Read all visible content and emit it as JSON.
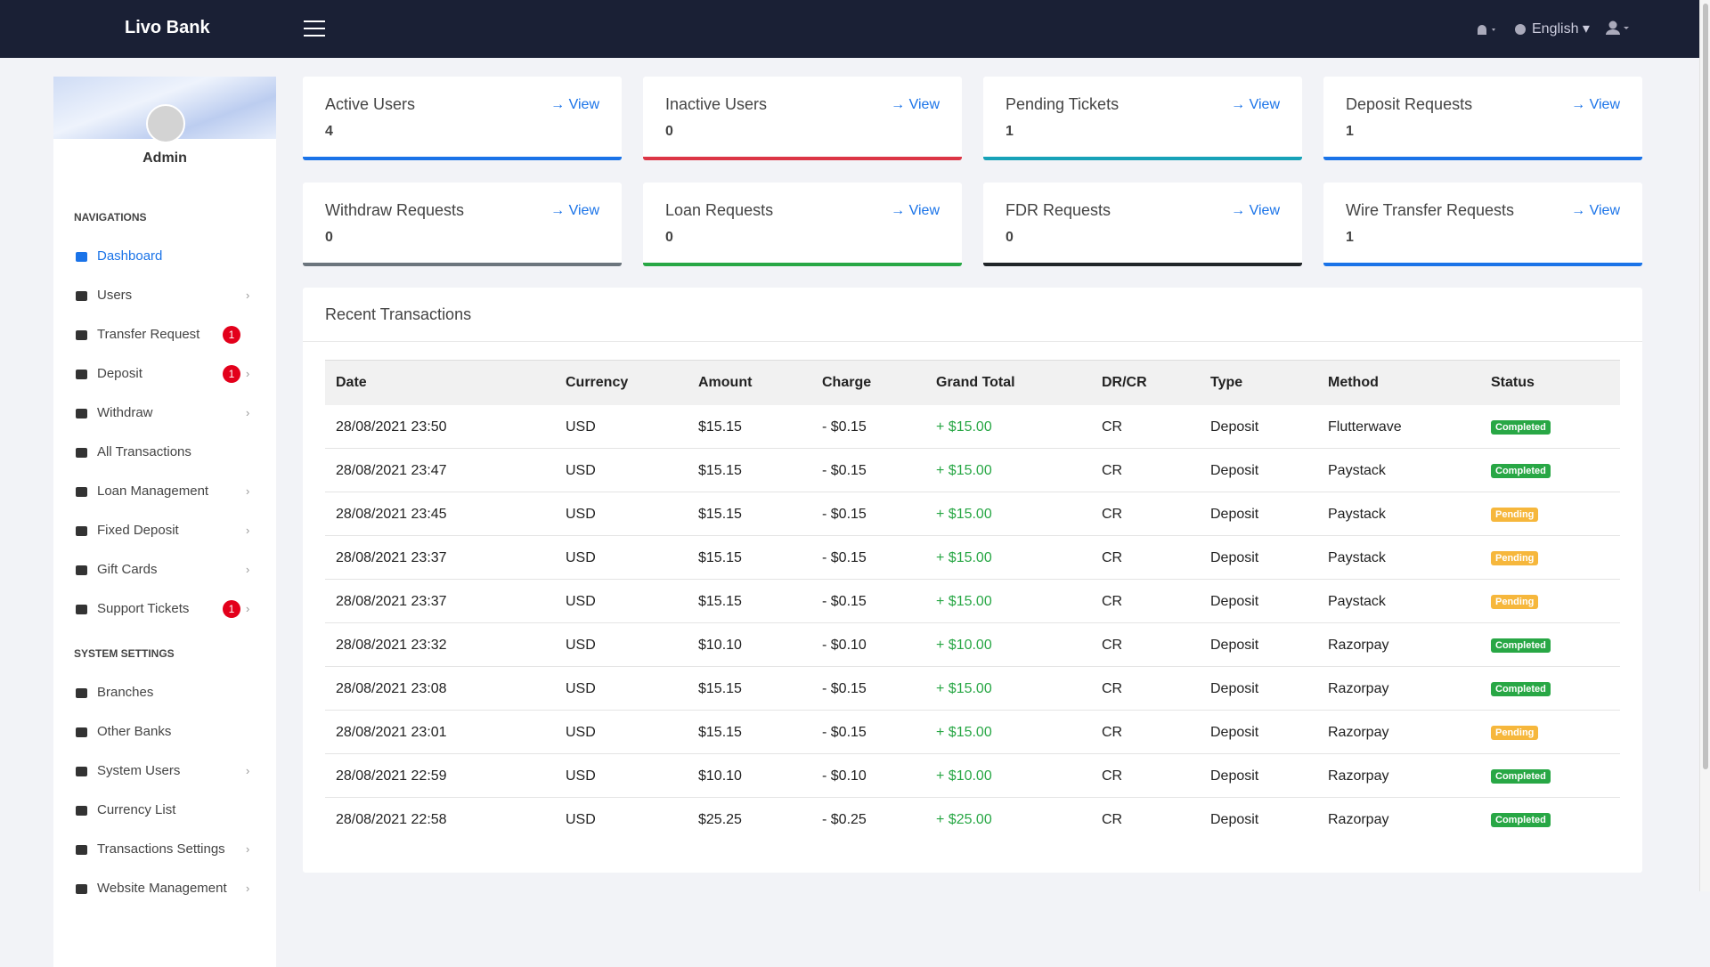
{
  "header": {
    "brand": "Livo Bank",
    "language": "English"
  },
  "sidebar": {
    "user": "Admin",
    "sections": [
      {
        "title": "NAVIGATIONS",
        "items": [
          {
            "label": "Dashboard",
            "active": true
          },
          {
            "label": "Users",
            "submenu": true
          },
          {
            "label": "Transfer Request",
            "badge": "1"
          },
          {
            "label": "Deposit",
            "badge": "1",
            "submenu": true
          },
          {
            "label": "Withdraw",
            "submenu": true
          },
          {
            "label": "All Transactions"
          },
          {
            "label": "Loan Management",
            "submenu": true
          },
          {
            "label": "Fixed Deposit",
            "submenu": true
          },
          {
            "label": "Gift Cards",
            "submenu": true
          },
          {
            "label": "Support Tickets",
            "badge": "1",
            "submenu": true
          }
        ]
      },
      {
        "title": "SYSTEM SETTINGS",
        "items": [
          {
            "label": "Branches"
          },
          {
            "label": "Other Banks"
          },
          {
            "label": "System Users",
            "submenu": true
          },
          {
            "label": "Currency List"
          },
          {
            "label": "Transactions Settings",
            "submenu": true
          },
          {
            "label": "Website Management",
            "submenu": true
          }
        ]
      }
    ]
  },
  "cards": [
    {
      "title": "Active Users",
      "count": "4",
      "link": "View",
      "color": "#1a73e8"
    },
    {
      "title": "Inactive Users",
      "count": "0",
      "link": "View",
      "color": "#dc3545"
    },
    {
      "title": "Pending Tickets",
      "count": "1",
      "link": "View",
      "color": "#17a2b8"
    },
    {
      "title": "Deposit Requests",
      "count": "1",
      "link": "View",
      "color": "#1a73e8"
    },
    {
      "title": "Withdraw Requests",
      "count": "0",
      "link": "View",
      "color": "#6c757d"
    },
    {
      "title": "Loan Requests",
      "count": "0",
      "link": "View",
      "color": "#28a745"
    },
    {
      "title": "FDR Requests",
      "count": "0",
      "link": "View",
      "color": "#212529"
    },
    {
      "title": "Wire Transfer Requests",
      "count": "1",
      "link": "View",
      "color": "#1a73e8"
    }
  ],
  "transactions": {
    "title": "Recent Transactions",
    "columns": [
      "Date",
      "Currency",
      "Amount",
      "Charge",
      "Grand Total",
      "DR/CR",
      "Type",
      "Method",
      "Status"
    ],
    "highlight_column": 4,
    "highlight_color": "#28a745",
    "rows": [
      {
        "cells": [
          "28/08/2021 23:50",
          "USD",
          "$15.15",
          "- $0.15",
          "+ $15.00",
          "CR",
          "Deposit",
          "Flutterwave",
          "Completed"
        ],
        "status_color": "#28a745"
      },
      {
        "cells": [
          "28/08/2021 23:47",
          "USD",
          "$15.15",
          "- $0.15",
          "+ $15.00",
          "CR",
          "Deposit",
          "Paystack",
          "Completed"
        ],
        "status_color": "#28a745"
      },
      {
        "cells": [
          "28/08/2021 23:45",
          "USD",
          "$15.15",
          "- $0.15",
          "+ $15.00",
          "CR",
          "Deposit",
          "Paystack",
          "Pending"
        ],
        "status_color": "#f6b73c"
      },
      {
        "cells": [
          "28/08/2021 23:37",
          "USD",
          "$15.15",
          "- $0.15",
          "+ $15.00",
          "CR",
          "Deposit",
          "Paystack",
          "Pending"
        ],
        "status_color": "#f6b73c"
      },
      {
        "cells": [
          "28/08/2021 23:37",
          "USD",
          "$15.15",
          "- $0.15",
          "+ $15.00",
          "CR",
          "Deposit",
          "Paystack",
          "Pending"
        ],
        "status_color": "#f6b73c"
      },
      {
        "cells": [
          "28/08/2021 23:32",
          "USD",
          "$10.10",
          "- $0.10",
          "+ $10.00",
          "CR",
          "Deposit",
          "Razorpay",
          "Completed"
        ],
        "status_color": "#28a745"
      },
      {
        "cells": [
          "28/08/2021 23:08",
          "USD",
          "$15.15",
          "- $0.15",
          "+ $15.00",
          "CR",
          "Deposit",
          "Razorpay",
          "Completed"
        ],
        "status_color": "#28a745"
      },
      {
        "cells": [
          "28/08/2021 23:01",
          "USD",
          "$15.15",
          "- $0.15",
          "+ $15.00",
          "CR",
          "Deposit",
          "Razorpay",
          "Pending"
        ],
        "status_color": "#f6b73c"
      },
      {
        "cells": [
          "28/08/2021 22:59",
          "USD",
          "$10.10",
          "- $0.10",
          "+ $10.00",
          "CR",
          "Deposit",
          "Razorpay",
          "Completed"
        ],
        "status_color": "#28a745"
      },
      {
        "cells": [
          "28/08/2021 22:58",
          "USD",
          "$25.25",
          "- $0.25",
          "+ $25.00",
          "CR",
          "Deposit",
          "Razorpay",
          "Completed"
        ],
        "status_color": "#28a745"
      }
    ]
  }
}
